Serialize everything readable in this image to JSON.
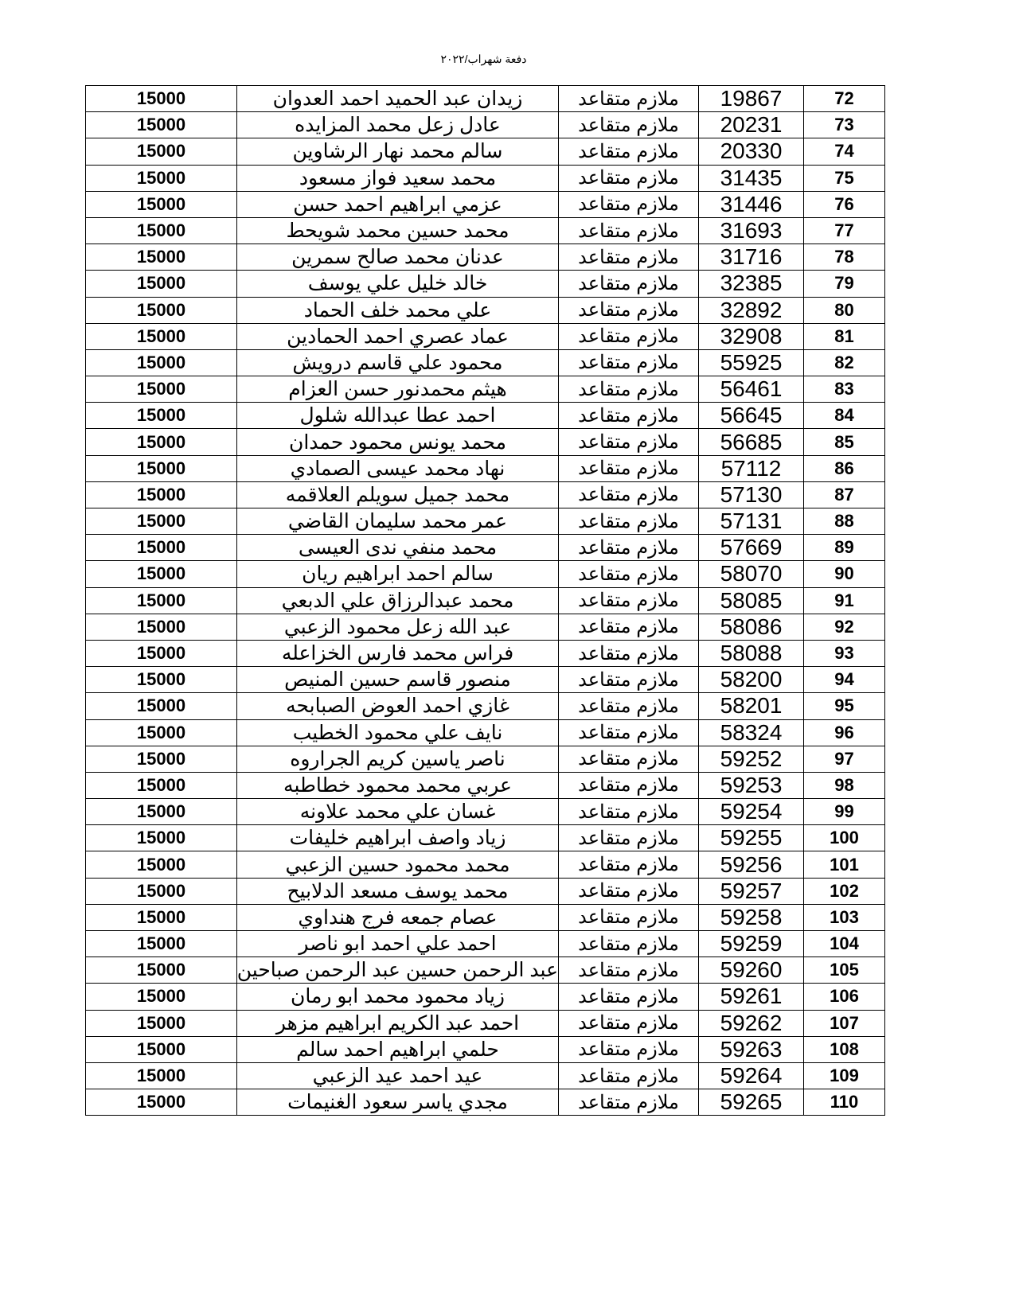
{
  "header": {
    "title": "دفعة شهراب/٢٠٢٢"
  },
  "table": {
    "rows": [
      {
        "seq": "72",
        "number": "19867",
        "rank": "ملازم متقاعد",
        "name": "زيدان عبد الحميد احمد العدوان",
        "amount": "15000"
      },
      {
        "seq": "73",
        "number": "20231",
        "rank": "ملازم متقاعد",
        "name": "عادل زعل محمد المزايده",
        "amount": "15000"
      },
      {
        "seq": "74",
        "number": "20330",
        "rank": "ملازم متقاعد",
        "name": "سالم محمد نهار الرشاوين",
        "amount": "15000"
      },
      {
        "seq": "75",
        "number": "31435",
        "rank": "ملازم متقاعد",
        "name": "محمد سعيد فواز مسعود",
        "amount": "15000"
      },
      {
        "seq": "76",
        "number": "31446",
        "rank": "ملازم متقاعد",
        "name": "عزمي ابراهيم احمد حسن",
        "amount": "15000"
      },
      {
        "seq": "77",
        "number": "31693",
        "rank": "ملازم متقاعد",
        "name": "محمد حسين محمد شويحط",
        "amount": "15000"
      },
      {
        "seq": "78",
        "number": "31716",
        "rank": "ملازم متقاعد",
        "name": "عدنان محمد صالح سمرين",
        "amount": "15000"
      },
      {
        "seq": "79",
        "number": "32385",
        "rank": "ملازم متقاعد",
        "name": "خالد خليل علي يوسف",
        "amount": "15000"
      },
      {
        "seq": "80",
        "number": "32892",
        "rank": "ملازم متقاعد",
        "name": "علي محمد خلف الحماد",
        "amount": "15000"
      },
      {
        "seq": "81",
        "number": "32908",
        "rank": "ملازم متقاعد",
        "name": "عماد عصري احمد الحمادين",
        "amount": "15000"
      },
      {
        "seq": "82",
        "number": "55925",
        "rank": "ملازم متقاعد",
        "name": "محمود  علي قاسم درويش",
        "amount": "15000"
      },
      {
        "seq": "83",
        "number": "56461",
        "rank": "ملازم متقاعد",
        "name": "هيثم محمدنور حسن العزام",
        "amount": "15000"
      },
      {
        "seq": "84",
        "number": "56645",
        "rank": "ملازم متقاعد",
        "name": "احمد عطا عبدالله شلول",
        "amount": "15000"
      },
      {
        "seq": "85",
        "number": "56685",
        "rank": "ملازم متقاعد",
        "name": "محمد يونس محمود حمدان",
        "amount": "15000"
      },
      {
        "seq": "86",
        "number": "57112",
        "rank": "ملازم متقاعد",
        "name": "نهاد محمد عيسى الصمادي",
        "amount": "15000"
      },
      {
        "seq": "87",
        "number": "57130",
        "rank": "ملازم متقاعد",
        "name": "محمد جميل سويلم العلاقمه",
        "amount": "15000"
      },
      {
        "seq": "88",
        "number": "57131",
        "rank": "ملازم متقاعد",
        "name": "عمر محمد سليمان القاضي",
        "amount": "15000"
      },
      {
        "seq": "89",
        "number": "57669",
        "rank": "ملازم متقاعد",
        "name": "محمد منفي ندى العيسى",
        "amount": "15000"
      },
      {
        "seq": "90",
        "number": "58070",
        "rank": "ملازم متقاعد",
        "name": "سالم احمد ابراهيم ريان",
        "amount": "15000"
      },
      {
        "seq": "91",
        "number": "58085",
        "rank": "ملازم متقاعد",
        "name": "محمد عبدالرزاق علي الدبعي",
        "amount": "15000"
      },
      {
        "seq": "92",
        "number": "58086",
        "rank": "ملازم متقاعد",
        "name": "عبد الله زعل محمود الزعبي",
        "amount": "15000"
      },
      {
        "seq": "93",
        "number": "58088",
        "rank": "ملازم متقاعد",
        "name": "فراس محمد فارس الخزاعله",
        "amount": "15000"
      },
      {
        "seq": "94",
        "number": "58200",
        "rank": "ملازم متقاعد",
        "name": "منصور قاسم حسين المنيص",
        "amount": "15000"
      },
      {
        "seq": "95",
        "number": "58201",
        "rank": "ملازم متقاعد",
        "name": "غازي احمد العوض الصبابحه",
        "amount": "15000"
      },
      {
        "seq": "96",
        "number": "58324",
        "rank": "ملازم متقاعد",
        "name": "نايف علي محمود الخطيب",
        "amount": "15000"
      },
      {
        "seq": "97",
        "number": "59252",
        "rank": "ملازم متقاعد",
        "name": "ناصر ياسين كريم الجراروه",
        "amount": "15000"
      },
      {
        "seq": "98",
        "number": "59253",
        "rank": "ملازم متقاعد",
        "name": "عربي محمد محمود خطاطبه",
        "amount": "15000"
      },
      {
        "seq": "99",
        "number": "59254",
        "rank": "ملازم متقاعد",
        "name": "غسان علي محمد علاونه",
        "amount": "15000"
      },
      {
        "seq": "100",
        "number": "59255",
        "rank": "ملازم متقاعد",
        "name": "زياد واصف ابراهيم خليفات",
        "amount": "15000"
      },
      {
        "seq": "101",
        "number": "59256",
        "rank": "ملازم متقاعد",
        "name": "محمد محمود حسين الزعبي",
        "amount": "15000"
      },
      {
        "seq": "102",
        "number": "59257",
        "rank": "ملازم متقاعد",
        "name": "محمد يوسف مسعد الدلابيح",
        "amount": "15000"
      },
      {
        "seq": "103",
        "number": "59258",
        "rank": "ملازم متقاعد",
        "name": "عصام جمعه فرج هنداوي",
        "amount": "15000"
      },
      {
        "seq": "104",
        "number": "59259",
        "rank": "ملازم متقاعد",
        "name": "احمد علي احمد ابو ناصر",
        "amount": "15000"
      },
      {
        "seq": "105",
        "number": "59260",
        "rank": "ملازم متقاعد",
        "name": "عبد الرحمن حسين عبد الرحمن صباحين",
        "amount": "15000"
      },
      {
        "seq": "106",
        "number": "59261",
        "rank": "ملازم متقاعد",
        "name": "زياد محمود محمد ابو رمان",
        "amount": "15000"
      },
      {
        "seq": "107",
        "number": "59262",
        "rank": "ملازم متقاعد",
        "name": "احمد عبد الكريم ابراهيم مزهر",
        "amount": "15000"
      },
      {
        "seq": "108",
        "number": "59263",
        "rank": "ملازم متقاعد",
        "name": "حلمي ابراهيم احمد سالم",
        "amount": "15000"
      },
      {
        "seq": "109",
        "number": "59264",
        "rank": "ملازم متقاعد",
        "name": "عيد احمد عيد الزعبي",
        "amount": "15000"
      },
      {
        "seq": "110",
        "number": "59265",
        "rank": "ملازم متقاعد",
        "name": "مجدي ياسر سعود الغنيمات",
        "amount": "15000"
      }
    ]
  }
}
